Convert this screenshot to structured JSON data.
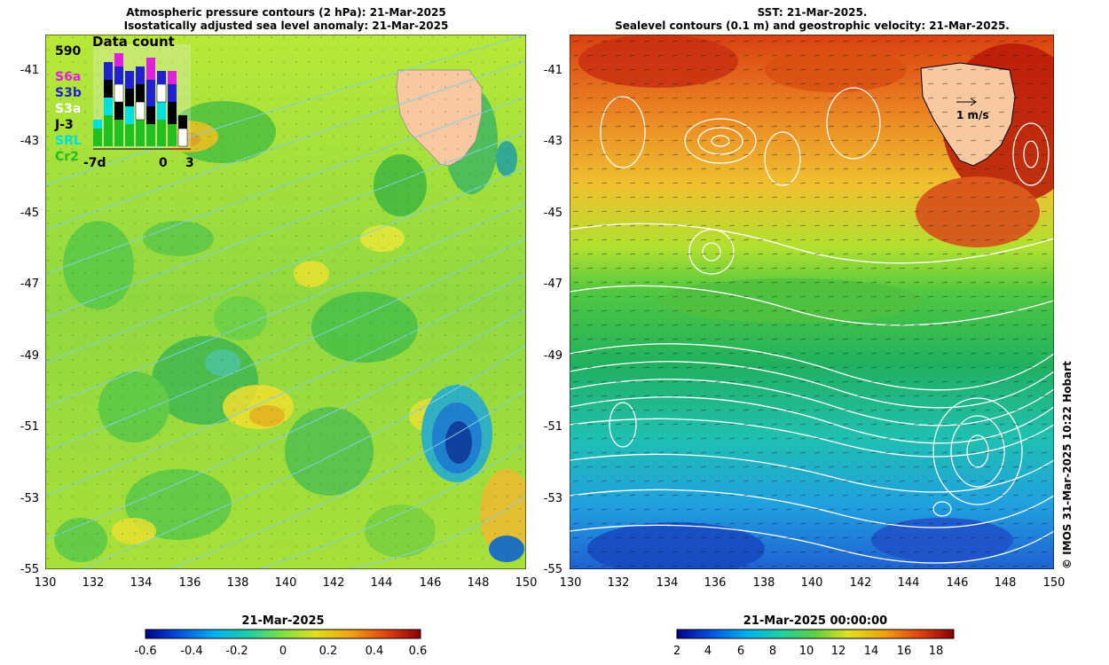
{
  "left_panel": {
    "title_line1": "Atmospheric pressure contours (2 hPa): 21-Mar-2025",
    "title_line2": "Isostatically adjusted sea level anomaly: 21-Mar-2025",
    "inset": {
      "title": "Data count",
      "max_value": "590",
      "missions": [
        {
          "label": "S6a",
          "color": "#e020e0"
        },
        {
          "label": "S3b",
          "color": "#2020d0"
        },
        {
          "label": "S3a",
          "color": "#ffffff"
        },
        {
          "label": "J-3",
          "color": "#000000"
        },
        {
          "label": "SRL",
          "color": "#00e0e0"
        },
        {
          "label": "Cr2",
          "color": "#20c020"
        }
      ],
      "x_labels": [
        "-7d",
        "0",
        "3"
      ]
    },
    "colorbar": {
      "title": "21-Mar-2025",
      "ticks": [
        "-0.6",
        "-0.4",
        "-0.2",
        "0",
        "0.2",
        "0.4",
        "0.6"
      ]
    }
  },
  "right_panel": {
    "title_line1": "SST: 21-Mar-2025.",
    "title_line2": "Sealevel contours (0.1 m) and geostrophic velocity: 21-Mar-2025.",
    "velocity_label": "1 m/s",
    "colorbar": {
      "title": "21-Mar-2025 00:00:00",
      "ticks": [
        "2",
        "4",
        "6",
        "8",
        "10",
        "12",
        "14",
        "16",
        "18"
      ]
    }
  },
  "axes": {
    "y_ticks": [
      "-41",
      "-43",
      "-45",
      "-47",
      "-49",
      "-51",
      "-53",
      "-55"
    ],
    "x_ticks": [
      "130",
      "132",
      "134",
      "136",
      "138",
      "140",
      "142",
      "144",
      "146",
      "148",
      "150"
    ]
  },
  "copyright": "© IMOS 31-Mar-2025 10:22 Hobart",
  "colors": {
    "land": "#f8c8a0",
    "sla_mid": "#a0e040",
    "contour": "#80d0e0",
    "sst_contour": "#ffffff"
  }
}
